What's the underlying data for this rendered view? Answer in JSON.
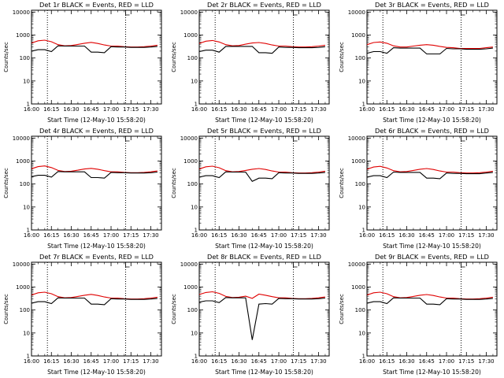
{
  "figure": {
    "xlabel": "Start Time (12-May-10 15:58:20)",
    "ylabel": "Counts/sec",
    "colors": {
      "events": "#000000",
      "lld": "#e00000"
    }
  },
  "chart_data": [
    {
      "type": "line",
      "title": "Det 1r BLACK = Events, RED = LLD",
      "xlabel": "Start Time (12-May-10 15:58:20)",
      "ylabel": "Counts/sec",
      "x_ticks": [
        "16:00",
        "16:15",
        "16:30",
        "16:45",
        "17:00",
        "17:15",
        "17:30"
      ],
      "y_ticks": [
        "1",
        "10",
        "100",
        "1000",
        "10000"
      ],
      "ylim": [
        1,
        12000
      ],
      "yscale": "log",
      "vlines_dotted": [
        "16:12",
        "17:11"
      ],
      "grid": false,
      "x": [
        "16:00",
        "16:05",
        "16:10",
        "16:15",
        "16:20",
        "16:25",
        "16:30",
        "16:35",
        "16:40",
        "16:45",
        "16:50",
        "16:55",
        "17:00",
        "17:05",
        "17:10",
        "17:15",
        "17:20",
        "17:25",
        "17:30",
        "17:35"
      ],
      "series": [
        {
          "name": "LLD",
          "color": "#e00000",
          "values": [
            450,
            560,
            600,
            510,
            380,
            340,
            350,
            390,
            440,
            480,
            430,
            370,
            330,
            330,
            310,
            300,
            300,
            310,
            330,
            360
          ]
        },
        {
          "name": "Events",
          "color": "#000000",
          "values": [
            200,
            230,
            230,
            190,
            340,
            330,
            330,
            330,
            330,
            180,
            180,
            170,
            310,
            300,
            300,
            290,
            290,
            290,
            300,
            320
          ]
        }
      ]
    },
    {
      "type": "line",
      "title": "Det 2r BLACK = Events, RED = LLD",
      "xlabel": "Start Time (12-May-10 15:58:20)",
      "ylabel": "Counts/sec",
      "x_ticks": [
        "16:00",
        "16:15",
        "16:30",
        "16:45",
        "17:00",
        "17:15",
        "17:30"
      ],
      "y_ticks": [
        "1",
        "10",
        "100",
        "1000",
        "10000"
      ],
      "ylim": [
        1,
        12000
      ],
      "yscale": "log",
      "vlines_dotted": [
        "16:12",
        "17:11"
      ],
      "grid": false,
      "x": [
        "16:00",
        "16:05",
        "16:10",
        "16:15",
        "16:20",
        "16:25",
        "16:30",
        "16:35",
        "16:40",
        "16:45",
        "16:50",
        "16:55",
        "17:00",
        "17:05",
        "17:10",
        "17:15",
        "17:20",
        "17:25",
        "17:30",
        "17:35"
      ],
      "series": [
        {
          "name": "LLD",
          "color": "#e00000",
          "values": [
            430,
            540,
            580,
            500,
            380,
            340,
            350,
            400,
            450,
            470,
            430,
            370,
            330,
            330,
            310,
            300,
            300,
            310,
            330,
            360
          ]
        },
        {
          "name": "Events",
          "color": "#000000",
          "values": [
            190,
            220,
            220,
            180,
            320,
            320,
            320,
            320,
            320,
            170,
            170,
            160,
            300,
            290,
            290,
            280,
            280,
            280,
            290,
            310
          ]
        }
      ]
    },
    {
      "type": "line",
      "title": "Det 3r BLACK = Events, RED = LLD",
      "xlabel": "Start Time (12-May-10 15:58:20)",
      "ylabel": "Counts/sec",
      "x_ticks": [
        "16:00",
        "16:15",
        "16:30",
        "16:45",
        "17:00",
        "17:15",
        "17:30"
      ],
      "y_ticks": [
        "1",
        "10",
        "100",
        "1000",
        "10000"
      ],
      "ylim": [
        1,
        12000
      ],
      "yscale": "log",
      "vlines_dotted": [
        "16:12",
        "17:11"
      ],
      "grid": false,
      "x": [
        "16:00",
        "16:05",
        "16:10",
        "16:15",
        "16:20",
        "16:25",
        "16:30",
        "16:35",
        "16:40",
        "16:45",
        "16:50",
        "16:55",
        "17:00",
        "17:05",
        "17:10",
        "17:15",
        "17:20",
        "17:25",
        "17:30",
        "17:35"
      ],
      "series": [
        {
          "name": "LLD",
          "color": "#e00000",
          "values": [
            380,
            470,
            500,
            440,
            340,
            300,
            300,
            330,
            360,
            380,
            360,
            320,
            290,
            280,
            260,
            260,
            260,
            260,
            280,
            300
          ]
        },
        {
          "name": "Events",
          "color": "#000000",
          "values": [
            160,
            190,
            190,
            160,
            280,
            270,
            270,
            270,
            270,
            150,
            150,
            150,
            260,
            250,
            250,
            240,
            240,
            240,
            250,
            270
          ]
        }
      ]
    },
    {
      "type": "line",
      "title": "Det 4r BLACK = Events, RED = LLD",
      "xlabel": "Start Time (12-May-10 15:58:20)",
      "ylabel": "Counts/sec",
      "x_ticks": [
        "16:00",
        "16:15",
        "16:30",
        "16:45",
        "17:00",
        "17:15",
        "17:30"
      ],
      "y_ticks": [
        "1",
        "10",
        "100",
        "1000",
        "10000"
      ],
      "ylim": [
        1,
        12000
      ],
      "yscale": "log",
      "vlines_dotted": [
        "16:12",
        "17:11"
      ],
      "grid": false,
      "x": [
        "16:00",
        "16:05",
        "16:10",
        "16:15",
        "16:20",
        "16:25",
        "16:30",
        "16:35",
        "16:40",
        "16:45",
        "16:50",
        "16:55",
        "17:00",
        "17:05",
        "17:10",
        "17:15",
        "17:20",
        "17:25",
        "17:30",
        "17:35"
      ],
      "series": [
        {
          "name": "LLD",
          "color": "#e00000",
          "values": [
            460,
            570,
            610,
            520,
            390,
            350,
            360,
            400,
            450,
            480,
            440,
            380,
            340,
            340,
            320,
            310,
            310,
            320,
            340,
            370
          ]
        },
        {
          "name": "Events",
          "color": "#000000",
          "values": [
            210,
            240,
            240,
            200,
            350,
            340,
            340,
            340,
            340,
            190,
            190,
            180,
            320,
            310,
            310,
            300,
            300,
            300,
            310,
            330
          ]
        }
      ]
    },
    {
      "type": "line",
      "title": "Det 5r BLACK = Events, RED = LLD",
      "xlabel": "Start Time (12-May-10 15:58:20)",
      "ylabel": "Counts/sec",
      "x_ticks": [
        "16:00",
        "16:15",
        "16:30",
        "16:45",
        "17:00",
        "17:15",
        "17:30"
      ],
      "y_ticks": [
        "1",
        "10",
        "100",
        "1000",
        "10000"
      ],
      "ylim": [
        1,
        12000
      ],
      "yscale": "log",
      "vlines_dotted": [
        "16:12",
        "17:11"
      ],
      "grid": false,
      "x": [
        "16:00",
        "16:05",
        "16:10",
        "16:15",
        "16:20",
        "16:25",
        "16:30",
        "16:35",
        "16:40",
        "16:45",
        "16:50",
        "16:55",
        "17:00",
        "17:05",
        "17:10",
        "17:15",
        "17:20",
        "17:25",
        "17:30",
        "17:35"
      ],
      "series": [
        {
          "name": "LLD",
          "color": "#e00000",
          "values": [
            450,
            560,
            600,
            510,
            380,
            340,
            350,
            390,
            440,
            470,
            430,
            370,
            330,
            330,
            310,
            300,
            300,
            310,
            330,
            360
          ]
        },
        {
          "name": "Events",
          "color": "#000000",
          "values": [
            200,
            230,
            230,
            190,
            340,
            330,
            330,
            330,
            130,
            180,
            180,
            170,
            310,
            300,
            300,
            290,
            290,
            290,
            300,
            320
          ]
        }
      ]
    },
    {
      "type": "line",
      "title": "Det 6r BLACK = Events, RED = LLD",
      "xlabel": "Start Time (12-May-10 15:58:20)",
      "ylabel": "Counts/sec",
      "x_ticks": [
        "16:00",
        "16:15",
        "16:30",
        "16:45",
        "17:00",
        "17:15",
        "17:30"
      ],
      "y_ticks": [
        "1",
        "10",
        "100",
        "1000",
        "10000"
      ],
      "ylim": [
        1,
        12000
      ],
      "yscale": "log",
      "vlines_dotted": [
        "16:12",
        "17:11"
      ],
      "grid": false,
      "x": [
        "16:00",
        "16:05",
        "16:10",
        "16:15",
        "16:20",
        "16:25",
        "16:30",
        "16:35",
        "16:40",
        "16:45",
        "16:50",
        "16:55",
        "17:00",
        "17:05",
        "17:10",
        "17:15",
        "17:20",
        "17:25",
        "17:30",
        "17:35"
      ],
      "series": [
        {
          "name": "LLD",
          "color": "#e00000",
          "values": [
            440,
            550,
            590,
            500,
            380,
            340,
            350,
            390,
            440,
            470,
            430,
            370,
            330,
            330,
            310,
            300,
            300,
            310,
            330,
            360
          ]
        },
        {
          "name": "Events",
          "color": "#000000",
          "values": [
            200,
            230,
            230,
            190,
            330,
            320,
            320,
            320,
            320,
            180,
            180,
            170,
            300,
            290,
            290,
            280,
            280,
            280,
            300,
            320
          ]
        }
      ]
    },
    {
      "type": "line",
      "title": "Det 7r BLACK = Events, RED = LLD",
      "xlabel": "Start Time (12-May-10 15:58:20)",
      "ylabel": "Counts/sec",
      "x_ticks": [
        "16:00",
        "16:15",
        "16:30",
        "16:45",
        "17:00",
        "17:15",
        "17:30"
      ],
      "y_ticks": [
        "1",
        "10",
        "100",
        "1000",
        "10000"
      ],
      "ylim": [
        1,
        12000
      ],
      "yscale": "log",
      "vlines_dotted": [
        "16:12",
        "17:11"
      ],
      "grid": false,
      "x": [
        "16:00",
        "16:05",
        "16:10",
        "16:15",
        "16:20",
        "16:25",
        "16:30",
        "16:35",
        "16:40",
        "16:45",
        "16:50",
        "16:55",
        "17:00",
        "17:05",
        "17:10",
        "17:15",
        "17:20",
        "17:25",
        "17:30",
        "17:35"
      ],
      "series": [
        {
          "name": "LLD",
          "color": "#e00000",
          "values": [
            450,
            560,
            600,
            510,
            380,
            340,
            350,
            390,
            440,
            480,
            430,
            370,
            330,
            330,
            310,
            300,
            300,
            310,
            330,
            360
          ]
        },
        {
          "name": "Events",
          "color": "#000000",
          "values": [
            200,
            230,
            230,
            190,
            340,
            330,
            330,
            330,
            330,
            180,
            180,
            170,
            310,
            300,
            300,
            290,
            290,
            290,
            300,
            320
          ]
        }
      ]
    },
    {
      "type": "line",
      "title": "Det 8r BLACK = Events, RED = LLD",
      "xlabel": "Start Time (12-May-10 15:58:20)",
      "ylabel": "Counts/sec",
      "x_ticks": [
        "16:00",
        "16:15",
        "16:30",
        "16:45",
        "17:00",
        "17:15",
        "17:30"
      ],
      "y_ticks": [
        "1",
        "10",
        "100",
        "1000",
        "10000"
      ],
      "ylim": [
        1,
        12000
      ],
      "yscale": "log",
      "vlines_dotted": [
        "16:12",
        "17:11"
      ],
      "grid": false,
      "x": [
        "16:00",
        "16:05",
        "16:10",
        "16:15",
        "16:20",
        "16:25",
        "16:30",
        "16:35",
        "16:40",
        "16:45",
        "16:50",
        "16:55",
        "17:00",
        "17:05",
        "17:10",
        "17:15",
        "17:20",
        "17:25",
        "17:30",
        "17:35"
      ],
      "series": [
        {
          "name": "LLD",
          "color": "#e00000",
          "values": [
            470,
            580,
            620,
            530,
            390,
            350,
            360,
            400,
            320,
            490,
            440,
            380,
            340,
            340,
            320,
            310,
            310,
            320,
            340,
            370
          ]
        },
        {
          "name": "Events",
          "color": "#000000",
          "values": [
            220,
            250,
            250,
            210,
            350,
            340,
            340,
            340,
            5,
            180,
            190,
            180,
            320,
            310,
            310,
            300,
            300,
            300,
            310,
            330
          ]
        }
      ]
    },
    {
      "type": "line",
      "title": "Det 9r BLACK = Events, RED = LLD",
      "xlabel": "Start Time (12-May-10 15:58:20)",
      "ylabel": "Counts/sec",
      "x_ticks": [
        "16:00",
        "16:15",
        "16:30",
        "16:45",
        "17:00",
        "17:15",
        "17:30"
      ],
      "y_ticks": [
        "1",
        "10",
        "100",
        "1000",
        "10000"
      ],
      "ylim": [
        1,
        12000
      ],
      "yscale": "log",
      "vlines_dotted": [
        "16:12",
        "17:11"
      ],
      "grid": false,
      "x": [
        "16:00",
        "16:05",
        "16:10",
        "16:15",
        "16:20",
        "16:25",
        "16:30",
        "16:35",
        "16:40",
        "16:45",
        "16:50",
        "16:55",
        "17:00",
        "17:05",
        "17:10",
        "17:15",
        "17:20",
        "17:25",
        "17:30",
        "17:35"
      ],
      "series": [
        {
          "name": "LLD",
          "color": "#e00000",
          "values": [
            450,
            560,
            600,
            510,
            380,
            340,
            350,
            390,
            440,
            470,
            430,
            370,
            330,
            330,
            310,
            300,
            300,
            310,
            330,
            360
          ]
        },
        {
          "name": "Events",
          "color": "#000000",
          "values": [
            200,
            230,
            230,
            190,
            340,
            330,
            330,
            330,
            330,
            180,
            180,
            170,
            310,
            300,
            300,
            290,
            290,
            290,
            300,
            320
          ]
        }
      ]
    }
  ]
}
